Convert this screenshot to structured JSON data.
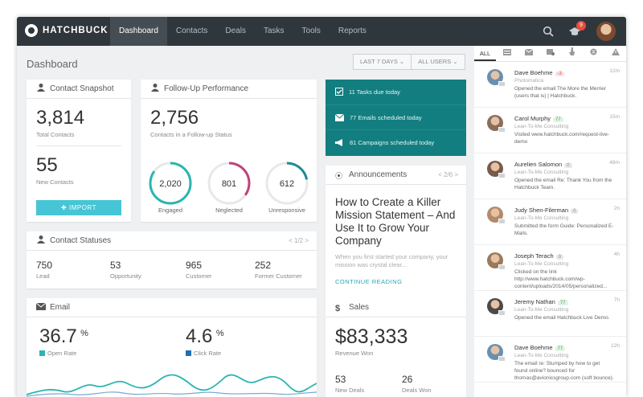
{
  "app": {
    "brand": "HATCHBUCK",
    "notification_count": "9"
  },
  "nav": [
    "Dashboard",
    "Contacts",
    "Deals",
    "Tasks",
    "Tools",
    "Reports"
  ],
  "page": {
    "title": "Dashboard",
    "filter_range": "LAST 7 DAYS",
    "filter_users": "ALL USERS"
  },
  "contact_snapshot": {
    "title": "Contact Snapshot",
    "total_value": "3,814",
    "total_label": "Total Contacts",
    "new_value": "55",
    "new_label": "New Contacts",
    "import_label": "IMPORT"
  },
  "followup": {
    "title": "Follow-Up Performance",
    "value": "2,756",
    "label": "Contacts in a Follow-up Status",
    "rings": [
      {
        "value": "2,020",
        "label": "Engaged",
        "color": "#2bb5b0",
        "fraction": 0.85
      },
      {
        "value": "801",
        "label": "Neglected",
        "color": "#c2417a",
        "fraction": 0.35
      },
      {
        "value": "612",
        "label": "Unresponsive",
        "color": "#1f8a93",
        "fraction": 0.22
      }
    ]
  },
  "tasks_panel": [
    {
      "icon": "checkbox-icon",
      "text": "11 Tasks due today"
    },
    {
      "icon": "envelope-icon",
      "text": "77 Emails scheduled today"
    },
    {
      "icon": "megaphone-icon",
      "text": "81 Campaigns scheduled today"
    }
  ],
  "announcements": {
    "title": "Announcements",
    "pager": "< 2/6 >",
    "headline": "How to Create a Killer Mission Statement – And Use It to Grow Your Company",
    "excerpt": "When you first started your company, your mission was crystal clear...",
    "link": "CONTINUE READING"
  },
  "contact_statuses": {
    "title": "Contact Statuses",
    "pager": "< 1/2 >",
    "items": [
      {
        "value": "750",
        "label": "Lead"
      },
      {
        "value": "53",
        "label": "Opportunity"
      },
      {
        "value": "965",
        "label": "Customer"
      },
      {
        "value": "252",
        "label": "Former Customer"
      }
    ]
  },
  "email": {
    "title": "Email",
    "open_rate": "36.7",
    "open_unit": "%",
    "open_label": "Open Rate",
    "open_color": "#2bb5b0",
    "click_rate": "4.6",
    "click_unit": "%",
    "click_label": "Click Rate",
    "click_color": "#1f6fb5"
  },
  "sales": {
    "title": "Sales",
    "revenue": "$83,333",
    "revenue_label": "Revenue Won",
    "new_deals": "53",
    "new_deals_label": "New Deals",
    "deals_won": "26",
    "deals_won_label": "Deals Won"
  },
  "activity": {
    "tabs": [
      "ALL"
    ],
    "items": [
      {
        "name": "Dave Boehme",
        "score": "-3",
        "score_type": "neg",
        "company": "Photomatica",
        "text": "Opened the email The More the Merrier (users that is) | Hatchbuck.",
        "time": "12m",
        "avatar_color": "#6a8fb0"
      },
      {
        "name": "Carol Murphy",
        "score": "77",
        "score_type": "pos",
        "company": "Lean-To-Me Consulting",
        "text": "Visited www.hatchbuck.com/request-live-demo",
        "time": "15m",
        "avatar_color": "#8a6d5a"
      },
      {
        "name": "Aurelien Salomon",
        "score": "0",
        "score_type": "zero",
        "company": "Lean-To-Me Consulting",
        "text": "Opened the email Re: Thank You from the Hatchbuck Team.",
        "time": "48m",
        "avatar_color": "#7a5a4a"
      },
      {
        "name": "Judy Shen-Filerman",
        "score": "0",
        "score_type": "zero",
        "company": "Lean-To-Me Consulting",
        "text": "Submitted the form Guide: Personalized E-Mails.",
        "time": "2h",
        "avatar_color": "#b48a6a"
      },
      {
        "name": "Joseph Terach",
        "score": "0",
        "score_type": "zero",
        "company": "Lean-To-Me Consulting",
        "text": "Clicked on the link http://www.hatchbuck.com/wp-content/uploads/2014/05/personalized...",
        "time": "4h",
        "avatar_color": "#9a7a5a"
      },
      {
        "name": "Jeremy Nathan",
        "score": "77",
        "score_type": "pos",
        "company": "Lean-To-Me Consulting",
        "text": "Opened the email Hatchbuck Live Demo.",
        "time": "7h",
        "avatar_color": "#4a4a4a"
      },
      {
        "name": "Dave Boehme",
        "score": "77",
        "score_type": "pos",
        "company": "Lean-To-Me Consulting",
        "text": "The email re: Stumped by how to get found online? bounced for thomas@avionicsgroup.com (soft bounce).",
        "time": "12h",
        "avatar_color": "#6a8fb0"
      }
    ]
  }
}
